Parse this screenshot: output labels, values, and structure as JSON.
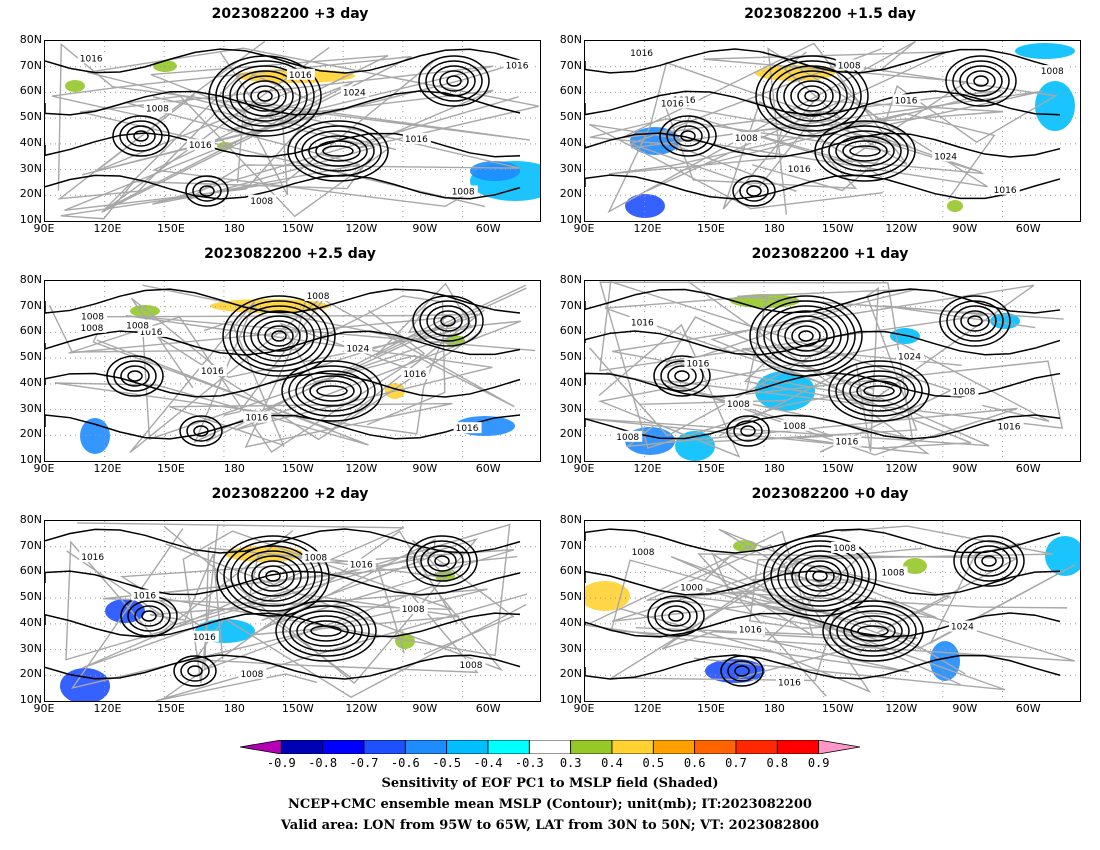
{
  "panels": [
    {
      "title": "2023082200  +3 day",
      "contour_labels": [
        "1016",
        "1008",
        "1016",
        "1008",
        "1016",
        "1024",
        "1016",
        "1008",
        "1016"
      ]
    },
    {
      "title": "2023082200  +1.5 day",
      "contour_labels": [
        "1016",
        "1016",
        "1008",
        "1016",
        "1008",
        "1016",
        "1024",
        "1016",
        "1008",
        "1016"
      ]
    },
    {
      "title": "2023082200  +2.5 day",
      "contour_labels": [
        "1008",
        "1016",
        "1016",
        "1016",
        "1008",
        "1024",
        "1016",
        "1016",
        "1008",
        "1008"
      ]
    },
    {
      "title": "2023082200  +1 day",
      "contour_labels": [
        "1016",
        "1016",
        "1008",
        "1008",
        "1016",
        "1024",
        "1008",
        "1016",
        "1008"
      ]
    },
    {
      "title": "2023082200  +2 day",
      "contour_labels": [
        "1016",
        "1016",
        "1016",
        "1008",
        "1008",
        "1016",
        "1008",
        "1008"
      ]
    },
    {
      "title": "2023082200  +0 day",
      "contour_labels": [
        "1008",
        "1000",
        "1016",
        "1016",
        "1008",
        "1008",
        "1024"
      ]
    }
  ],
  "y_ticks": [
    "80N",
    "70N",
    "60N",
    "50N",
    "40N",
    "30N",
    "20N",
    "10N"
  ],
  "x_ticks": [
    "90E",
    "120E",
    "150E",
    "180",
    "150W",
    "120W",
    "90W",
    "60W"
  ],
  "colorbar": {
    "labels": [
      "-0.9",
      "-0.8",
      "-0.7",
      "-0.6",
      "-0.5",
      "-0.4",
      "-0.3",
      "0.3",
      "0.4",
      "0.5",
      "0.6",
      "0.7",
      "0.8",
      "0.9"
    ],
    "colors": [
      "#b400b4",
      "#0000b4",
      "#0000ff",
      "#1e50ff",
      "#1e8cff",
      "#00beff",
      "#00ffff",
      "#ffffff",
      "#96c828",
      "#ffd232",
      "#ffa000",
      "#ff6400",
      "#ff2800",
      "#ff0000",
      "#ff96c8"
    ]
  },
  "footer": [
    "Sensitivity of EOF PC1 to MSLP field (Shaded)",
    "NCEP+CMC ensemble mean MSLP (Contour); unit(mb); IT:2023082200",
    "Valid area: LON from 95W to 65W, LAT from 30N to 50N; VT: 2023082800"
  ]
}
